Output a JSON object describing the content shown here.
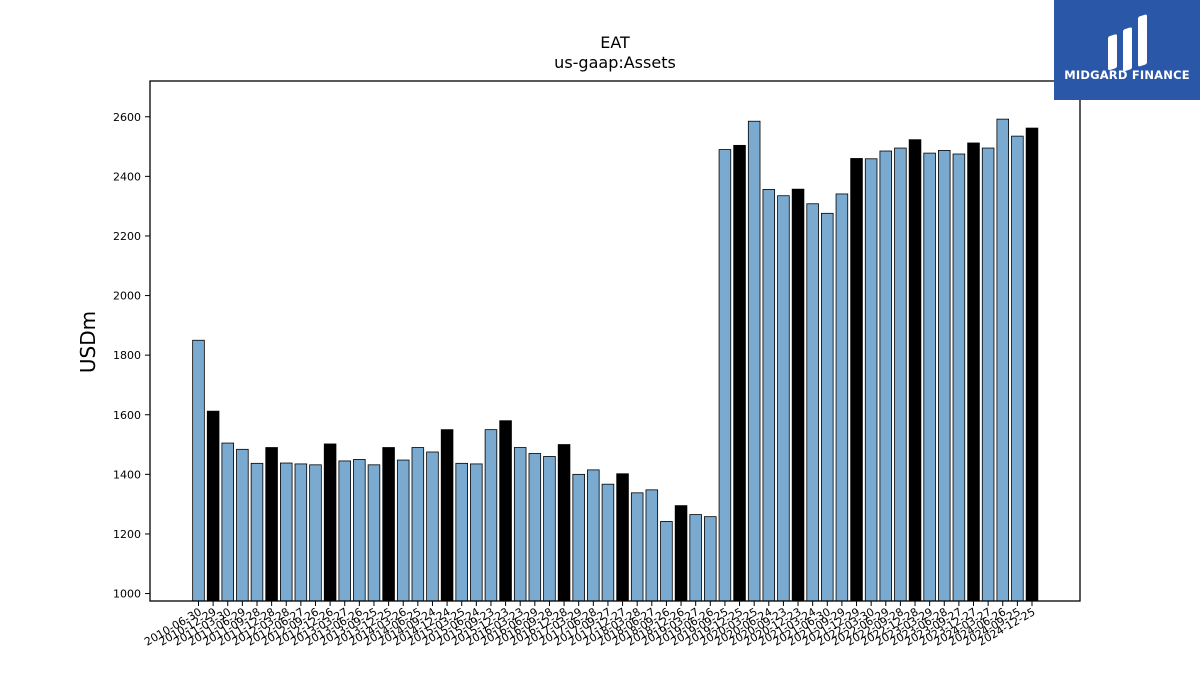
{
  "brand": {
    "name": "MIDGARD FINANCE",
    "bg_color": "#2a57a8"
  },
  "chart_data": {
    "type": "bar",
    "title": "EAT",
    "subtitle": "us-gaap:Assets",
    "ylabel": "USDm",
    "xlabel": "",
    "ylim": [
      975,
      2720
    ],
    "yticks": [
      1000,
      1200,
      1400,
      1600,
      1800,
      2000,
      2200,
      2400,
      2600
    ],
    "colors": {
      "quarter": "#7aaad0",
      "fiscal_year_end": "#000000"
    },
    "categories": [
      "2010-06-30",
      "2010-12-29",
      "2011-03-30",
      "2011-06-29",
      "2011-09-28",
      "2011-12-28",
      "2012-03-28",
      "2012-06-27",
      "2012-09-26",
      "2012-12-26",
      "2013-03-27",
      "2013-06-26",
      "2013-09-25",
      "2013-12-25",
      "2014-03-26",
      "2014-06-25",
      "2014-09-24",
      "2014-12-24",
      "2015-03-25",
      "2015-06-24",
      "2015-09-23",
      "2015-12-23",
      "2016-03-23",
      "2016-06-29",
      "2016-09-28",
      "2016-12-28",
      "2017-03-29",
      "2017-06-28",
      "2017-09-27",
      "2017-12-27",
      "2018-03-28",
      "2018-06-27",
      "2018-09-26",
      "2018-12-26",
      "2019-03-27",
      "2019-06-26",
      "2019-09-25",
      "2019-12-25",
      "2020-03-25",
      "2020-06-24",
      "2020-09-23",
      "2020-12-23",
      "2021-03-24",
      "2021-06-30",
      "2021-09-29",
      "2021-12-29",
      "2022-03-30",
      "2022-06-29",
      "2022-09-28",
      "2022-12-28",
      "2023-03-29",
      "2023-06-28",
      "2023-09-27",
      "2023-12-27",
      "2024-03-27",
      "2024-06-26",
      "2024-09-25",
      "2024-12-25"
    ],
    "values": [
      1850,
      1612,
      1505,
      1484,
      1437,
      1490,
      1438,
      1435,
      1432,
      1502,
      1445,
      1450,
      1432,
      1490,
      1448,
      1490,
      1475,
      1550,
      1437,
      1435,
      1550,
      1580,
      1490,
      1470,
      1460,
      1500,
      1400,
      1415,
      1367,
      1402,
      1338,
      1348,
      1242,
      1295,
      1265,
      1258,
      2490,
      2504,
      2585,
      2356,
      2335,
      2357,
      2308,
      2276,
      2341,
      2460,
      2459,
      2485,
      2495,
      2523,
      2478,
      2487,
      2475,
      2512,
      2495,
      2592,
      2535,
      2562
    ],
    "fiscal_year_end": [
      false,
      true,
      false,
      false,
      false,
      true,
      false,
      false,
      false,
      true,
      false,
      false,
      false,
      true,
      false,
      false,
      false,
      true,
      false,
      false,
      false,
      true,
      false,
      false,
      false,
      true,
      false,
      false,
      false,
      true,
      false,
      false,
      false,
      true,
      false,
      false,
      false,
      true,
      false,
      false,
      false,
      true,
      false,
      false,
      false,
      true,
      false,
      false,
      false,
      true,
      false,
      false,
      false,
      true,
      false,
      false,
      false,
      true
    ]
  }
}
